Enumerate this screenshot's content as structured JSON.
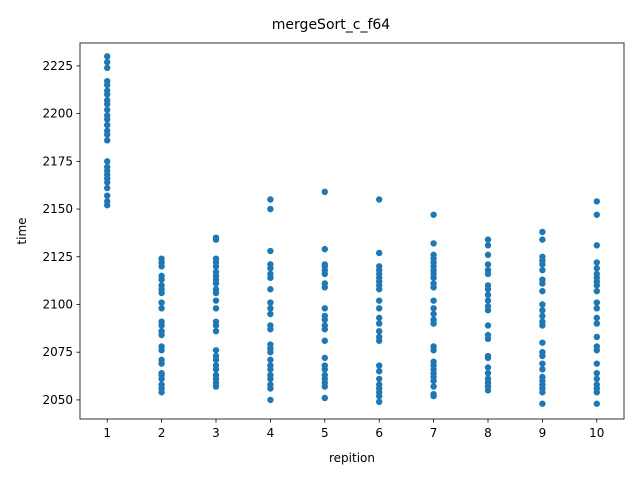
{
  "chart_data": {
    "type": "scatter",
    "title": "mergeSort_c_f64",
    "xlabel": "repition",
    "ylabel": "time",
    "xlim": [
      0.5,
      10.5
    ],
    "ylim": [
      2040,
      2237
    ],
    "x_ticks": [
      1,
      2,
      3,
      4,
      5,
      6,
      7,
      8,
      9,
      10
    ],
    "y_ticks": [
      2050,
      2075,
      2100,
      2125,
      2150,
      2175,
      2200,
      2225
    ],
    "grid": false,
    "marker_color": "#1f77b4",
    "series": [
      {
        "points": [
          [
            1,
            2152
          ],
          [
            1,
            2154
          ],
          [
            1,
            2157
          ],
          [
            1,
            2161
          ],
          [
            1,
            2164
          ],
          [
            1,
            2166
          ],
          [
            1,
            2168
          ],
          [
            1,
            2170
          ],
          [
            1,
            2172
          ],
          [
            1,
            2175
          ],
          [
            1,
            2186
          ],
          [
            1,
            2189
          ],
          [
            1,
            2191
          ],
          [
            1,
            2194
          ],
          [
            1,
            2197
          ],
          [
            1,
            2199
          ],
          [
            1,
            2202
          ],
          [
            1,
            2205
          ],
          [
            1,
            2207
          ],
          [
            1,
            2210
          ],
          [
            1,
            2212
          ],
          [
            1,
            2215
          ],
          [
            1,
            2217
          ],
          [
            1,
            2224
          ],
          [
            1,
            2227
          ],
          [
            1,
            2230
          ],
          [
            2,
            2054
          ],
          [
            2,
            2056
          ],
          [
            2,
            2058
          ],
          [
            2,
            2061
          ],
          [
            2,
            2063
          ],
          [
            2,
            2064
          ],
          [
            2,
            2069
          ],
          [
            2,
            2071
          ],
          [
            2,
            2076
          ],
          [
            2,
            2078
          ],
          [
            2,
            2084
          ],
          [
            2,
            2086
          ],
          [
            2,
            2089
          ],
          [
            2,
            2091
          ],
          [
            2,
            2098
          ],
          [
            2,
            2101
          ],
          [
            2,
            2106
          ],
          [
            2,
            2108
          ],
          [
            2,
            2110
          ],
          [
            2,
            2113
          ],
          [
            2,
            2115
          ],
          [
            2,
            2120
          ],
          [
            2,
            2122
          ],
          [
            2,
            2124
          ],
          [
            3,
            2057
          ],
          [
            3,
            2059
          ],
          [
            3,
            2061
          ],
          [
            3,
            2063
          ],
          [
            3,
            2066
          ],
          [
            3,
            2068
          ],
          [
            3,
            2071
          ],
          [
            3,
            2073
          ],
          [
            3,
            2076
          ],
          [
            3,
            2086
          ],
          [
            3,
            2089
          ],
          [
            3,
            2091
          ],
          [
            3,
            2098
          ],
          [
            3,
            2102
          ],
          [
            3,
            2106
          ],
          [
            3,
            2108
          ],
          [
            3,
            2111
          ],
          [
            3,
            2113
          ],
          [
            3,
            2115
          ],
          [
            3,
            2117
          ],
          [
            3,
            2120
          ],
          [
            3,
            2122
          ],
          [
            3,
            2124
          ],
          [
            3,
            2134
          ],
          [
            3,
            2135
          ],
          [
            4,
            2050
          ],
          [
            4,
            2056
          ],
          [
            4,
            2058
          ],
          [
            4,
            2061
          ],
          [
            4,
            2063
          ],
          [
            4,
            2066
          ],
          [
            4,
            2068
          ],
          [
            4,
            2071
          ],
          [
            4,
            2075
          ],
          [
            4,
            2077
          ],
          [
            4,
            2079
          ],
          [
            4,
            2087
          ],
          [
            4,
            2089
          ],
          [
            4,
            2095
          ],
          [
            4,
            2098
          ],
          [
            4,
            2101
          ],
          [
            4,
            2108
          ],
          [
            4,
            2114
          ],
          [
            4,
            2116
          ],
          [
            4,
            2119
          ],
          [
            4,
            2121
          ],
          [
            4,
            2128
          ],
          [
            4,
            2150
          ],
          [
            4,
            2155
          ],
          [
            5,
            2051
          ],
          [
            5,
            2057
          ],
          [
            5,
            2059
          ],
          [
            5,
            2061
          ],
          [
            5,
            2063
          ],
          [
            5,
            2066
          ],
          [
            5,
            2068
          ],
          [
            5,
            2072
          ],
          [
            5,
            2081
          ],
          [
            5,
            2087
          ],
          [
            5,
            2089
          ],
          [
            5,
            2092
          ],
          [
            5,
            2094
          ],
          [
            5,
            2098
          ],
          [
            5,
            2109
          ],
          [
            5,
            2111
          ],
          [
            5,
            2116
          ],
          [
            5,
            2118
          ],
          [
            5,
            2120
          ],
          [
            5,
            2121
          ],
          [
            5,
            2129
          ],
          [
            5,
            2159
          ],
          [
            6,
            2049
          ],
          [
            6,
            2052
          ],
          [
            6,
            2054
          ],
          [
            6,
            2056
          ],
          [
            6,
            2058
          ],
          [
            6,
            2061
          ],
          [
            6,
            2065
          ],
          [
            6,
            2068
          ],
          [
            6,
            2081
          ],
          [
            6,
            2083
          ],
          [
            6,
            2086
          ],
          [
            6,
            2090
          ],
          [
            6,
            2093
          ],
          [
            6,
            2098
          ],
          [
            6,
            2102
          ],
          [
            6,
            2108
          ],
          [
            6,
            2110
          ],
          [
            6,
            2112
          ],
          [
            6,
            2114
          ],
          [
            6,
            2116
          ],
          [
            6,
            2118
          ],
          [
            6,
            2120
          ],
          [
            6,
            2127
          ],
          [
            6,
            2155
          ],
          [
            7,
            2052
          ],
          [
            7,
            2053
          ],
          [
            7,
            2057
          ],
          [
            7,
            2060
          ],
          [
            7,
            2062
          ],
          [
            7,
            2064
          ],
          [
            7,
            2066
          ],
          [
            7,
            2068
          ],
          [
            7,
            2070
          ],
          [
            7,
            2076
          ],
          [
            7,
            2078
          ],
          [
            7,
            2090
          ],
          [
            7,
            2092
          ],
          [
            7,
            2095
          ],
          [
            7,
            2098
          ],
          [
            7,
            2102
          ],
          [
            7,
            2109
          ],
          [
            7,
            2111
          ],
          [
            7,
            2114
          ],
          [
            7,
            2116
          ],
          [
            7,
            2118
          ],
          [
            7,
            2120
          ],
          [
            7,
            2122
          ],
          [
            7,
            2124
          ],
          [
            7,
            2126
          ],
          [
            7,
            2132
          ],
          [
            7,
            2147
          ],
          [
            8,
            2055
          ],
          [
            8,
            2057
          ],
          [
            8,
            2059
          ],
          [
            8,
            2061
          ],
          [
            8,
            2064
          ],
          [
            8,
            2067
          ],
          [
            8,
            2072
          ],
          [
            8,
            2073
          ],
          [
            8,
            2082
          ],
          [
            8,
            2084
          ],
          [
            8,
            2089
          ],
          [
            8,
            2097
          ],
          [
            8,
            2099
          ],
          [
            8,
            2102
          ],
          [
            8,
            2105
          ],
          [
            8,
            2108
          ],
          [
            8,
            2110
          ],
          [
            8,
            2116
          ],
          [
            8,
            2118
          ],
          [
            8,
            2121
          ],
          [
            8,
            2126
          ],
          [
            8,
            2131
          ],
          [
            8,
            2134
          ],
          [
            9,
            2048
          ],
          [
            9,
            2054
          ],
          [
            9,
            2056
          ],
          [
            9,
            2058
          ],
          [
            9,
            2060
          ],
          [
            9,
            2062
          ],
          [
            9,
            2066
          ],
          [
            9,
            2069
          ],
          [
            9,
            2073
          ],
          [
            9,
            2075
          ],
          [
            9,
            2080
          ],
          [
            9,
            2089
          ],
          [
            9,
            2091
          ],
          [
            9,
            2094
          ],
          [
            9,
            2097
          ],
          [
            9,
            2100
          ],
          [
            9,
            2107
          ],
          [
            9,
            2111
          ],
          [
            9,
            2113
          ],
          [
            9,
            2118
          ],
          [
            9,
            2121
          ],
          [
            9,
            2123
          ],
          [
            9,
            2125
          ],
          [
            9,
            2134
          ],
          [
            9,
            2138
          ],
          [
            10,
            2048
          ],
          [
            10,
            2054
          ],
          [
            10,
            2056
          ],
          [
            10,
            2058
          ],
          [
            10,
            2061
          ],
          [
            10,
            2064
          ],
          [
            10,
            2069
          ],
          [
            10,
            2076
          ],
          [
            10,
            2078
          ],
          [
            10,
            2083
          ],
          [
            10,
            2090
          ],
          [
            10,
            2093
          ],
          [
            10,
            2098
          ],
          [
            10,
            2101
          ],
          [
            10,
            2107
          ],
          [
            10,
            2110
          ],
          [
            10,
            2112
          ],
          [
            10,
            2114
          ],
          [
            10,
            2116
          ],
          [
            10,
            2119
          ],
          [
            10,
            2122
          ],
          [
            10,
            2131
          ],
          [
            10,
            2147
          ],
          [
            10,
            2154
          ]
        ]
      }
    ]
  }
}
